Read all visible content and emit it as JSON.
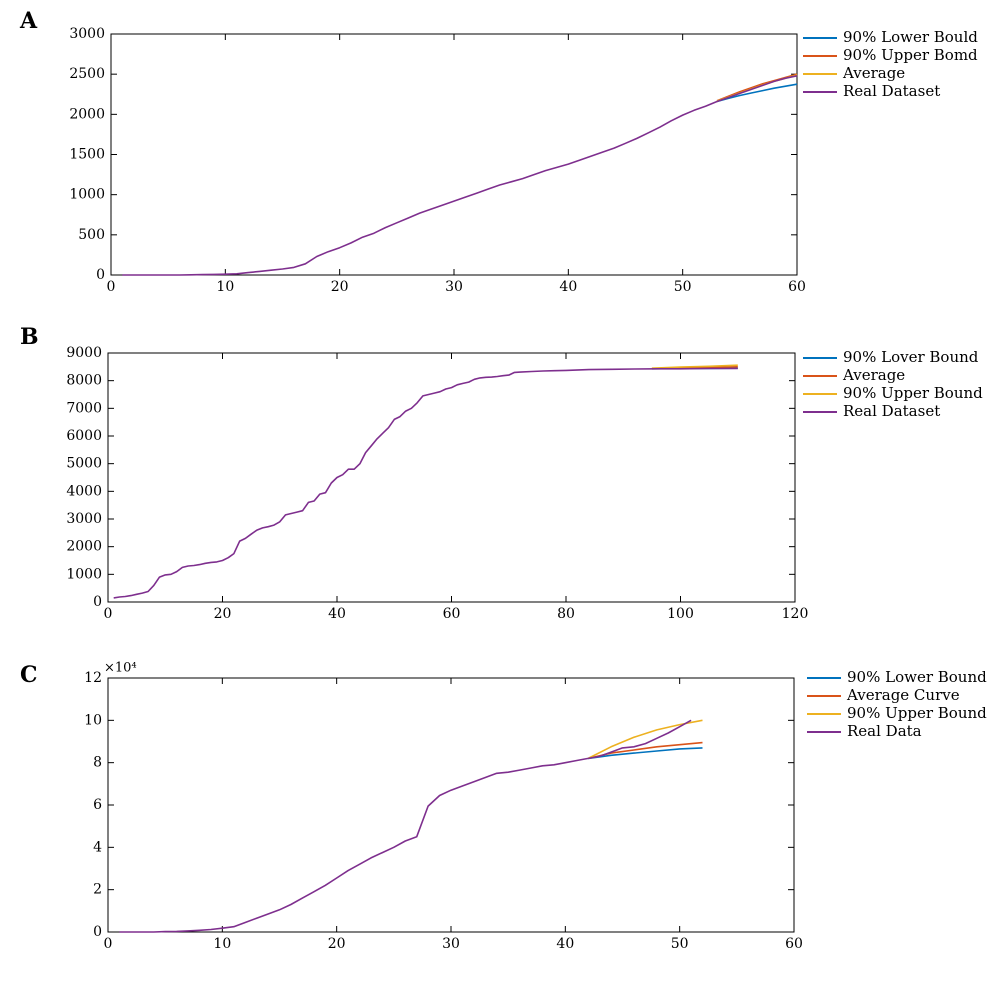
{
  "chart_data": [
    {
      "panel_label": "A",
      "type": "line",
      "xlim": [
        0,
        60
      ],
      "ylim": [
        0,
        3000
      ],
      "xticks": [
        0,
        10,
        20,
        30,
        40,
        50,
        60
      ],
      "yticks": [
        0,
        500,
        1000,
        1500,
        2000,
        2500,
        3000
      ],
      "xtick_labels": [
        "0",
        "10",
        "20",
        "30",
        "40",
        "50",
        "60"
      ],
      "ytick_labels": [
        "0",
        "500",
        "1000",
        "1500",
        "2000",
        "2500",
        "3000"
      ],
      "y_multiplier_label": "",
      "grid": false,
      "legend_position": "outside-right",
      "series": [
        {
          "name": "90% Lower Bould",
          "color": "#0072bd",
          "x": [
            53,
            54,
            55,
            56,
            57,
            58,
            59,
            60
          ],
          "y": [
            2160,
            2200,
            2235,
            2265,
            2295,
            2325,
            2350,
            2375
          ]
        },
        {
          "name": "90% Upper Bomd",
          "color": "#d95319",
          "x": [
            53,
            54,
            55,
            56,
            57,
            58,
            59,
            60
          ],
          "y": [
            2170,
            2225,
            2280,
            2330,
            2380,
            2420,
            2460,
            2500
          ]
        },
        {
          "name": "Average",
          "color": "#edb120",
          "x": [
            53,
            54,
            55,
            56,
            57,
            58,
            59,
            60
          ],
          "y": [
            2165,
            2215,
            2265,
            2315,
            2365,
            2410,
            2450,
            2490
          ]
        },
        {
          "name": "Real Dataset",
          "color": "#7e2f8e",
          "x": [
            1,
            2,
            3,
            4,
            5,
            6,
            7,
            8,
            9,
            10,
            11,
            12,
            13,
            14,
            15,
            16,
            17,
            18,
            19,
            20,
            21,
            22,
            23,
            24,
            25,
            26,
            27,
            28,
            29,
            30,
            31,
            32,
            33,
            34,
            35,
            36,
            37,
            38,
            39,
            40,
            41,
            42,
            43,
            44,
            45,
            46,
            47,
            48,
            49,
            50,
            51,
            52,
            53,
            54,
            55,
            56,
            57,
            58,
            59,
            60
          ],
          "y": [
            0,
            0,
            0,
            0,
            0,
            0,
            2,
            5,
            8,
            10,
            15,
            30,
            45,
            60,
            75,
            95,
            140,
            230,
            290,
            340,
            400,
            470,
            520,
            590,
            650,
            710,
            770,
            820,
            870,
            920,
            970,
            1020,
            1070,
            1120,
            1160,
            1200,
            1250,
            1300,
            1340,
            1380,
            1430,
            1480,
            1530,
            1580,
            1640,
            1700,
            1770,
            1840,
            1920,
            1990,
            2050,
            2100,
            2160,
            2210,
            2260,
            2310,
            2360,
            2410,
            2450,
            2480
          ]
        }
      ]
    },
    {
      "panel_label": "B",
      "type": "line",
      "xlim": [
        0,
        120
      ],
      "ylim": [
        0,
        9000
      ],
      "xticks": [
        0,
        20,
        40,
        60,
        80,
        100,
        120
      ],
      "yticks": [
        0,
        1000,
        2000,
        3000,
        4000,
        5000,
        6000,
        7000,
        8000,
        9000
      ],
      "xtick_labels": [
        "0",
        "20",
        "40",
        "60",
        "80",
        "100",
        "120"
      ],
      "ytick_labels": [
        "0",
        "1000",
        "2000",
        "3000",
        "4000",
        "5000",
        "6000",
        "7000",
        "8000",
        "9000"
      ],
      "y_multiplier_label": "",
      "grid": false,
      "legend_position": "outside-right",
      "series": [
        {
          "name": "90% Lover Bound",
          "color": "#0072bd",
          "x": [
            95,
            100,
            105,
            110
          ],
          "y": [
            8430,
            8440,
            8445,
            8450
          ]
        },
        {
          "name": "Average",
          "color": "#d95319",
          "x": [
            95,
            100,
            105,
            110
          ],
          "y": [
            8440,
            8460,
            8480,
            8500
          ]
        },
        {
          "name": "90% Upper Bound",
          "color": "#edb120",
          "x": [
            95,
            100,
            105,
            110
          ],
          "y": [
            8450,
            8490,
            8520,
            8560
          ]
        },
        {
          "name": "Real Dataset",
          "color": "#7e2f8e",
          "x": [
            1,
            2,
            3,
            4,
            5,
            6,
            7,
            8,
            9,
            10,
            11,
            12,
            13,
            14,
            15,
            16,
            17,
            18,
            19,
            20,
            21,
            22,
            23,
            24,
            25,
            26,
            27,
            28,
            29,
            30,
            31,
            32,
            33,
            34,
            35,
            36,
            37,
            38,
            39,
            40,
            41,
            42,
            43,
            44,
            45,
            46,
            47,
            48,
            49,
            50,
            51,
            52,
            53,
            54,
            55,
            56,
            57,
            58,
            59,
            60,
            61,
            62,
            63,
            64,
            65,
            66,
            67,
            68,
            69,
            70,
            71,
            72,
            74,
            76,
            78,
            80,
            84,
            88,
            92,
            96,
            100,
            105,
            110
          ],
          "y": [
            150,
            180,
            200,
            230,
            280,
            320,
            380,
            600,
            900,
            980,
            1000,
            1100,
            1250,
            1300,
            1320,
            1350,
            1400,
            1430,
            1450,
            1500,
            1600,
            1750,
            2200,
            2300,
            2450,
            2600,
            2680,
            2720,
            2780,
            2900,
            3150,
            3200,
            3250,
            3300,
            3600,
            3650,
            3900,
            3950,
            4300,
            4500,
            4600,
            4800,
            4800,
            5000,
            5400,
            5650,
            5900,
            6100,
            6300,
            6600,
            6700,
            6900,
            7000,
            7200,
            7450,
            7500,
            7550,
            7600,
            7700,
            7750,
            7850,
            7900,
            7950,
            8050,
            8100,
            8120,
            8130,
            8150,
            8180,
            8200,
            8300,
            8310,
            8330,
            8350,
            8360,
            8370,
            8400,
            8410,
            8420,
            8430,
            8430,
            8440,
            8440
          ]
        }
      ]
    },
    {
      "panel_label": "C",
      "type": "line",
      "xlim": [
        0,
        60
      ],
      "ylim": [
        0,
        12
      ],
      "xticks": [
        0,
        10,
        20,
        30,
        40,
        50,
        60
      ],
      "yticks": [
        0,
        2,
        4,
        6,
        8,
        10,
        12
      ],
      "xtick_labels": [
        "0",
        "10",
        "20",
        "30",
        "40",
        "50",
        "60"
      ],
      "ytick_labels": [
        "0",
        "2",
        "4",
        "6",
        "8",
        "10",
        "12"
      ],
      "y_multiplier_label": "×10⁴",
      "grid": false,
      "legend_position": "outside-right",
      "series": [
        {
          "name": "90% Lower Bound",
          "color": "#0072bd",
          "x": [
            42,
            44,
            46,
            48,
            50,
            52
          ],
          "y": [
            8.2,
            8.35,
            8.45,
            8.55,
            8.65,
            8.7
          ]
        },
        {
          "name": "Average Curve",
          "color": "#d95319",
          "x": [
            42,
            44,
            46,
            48,
            50,
            52
          ],
          "y": [
            8.2,
            8.45,
            8.6,
            8.75,
            8.85,
            8.95
          ]
        },
        {
          "name": "90% Upper Bound",
          "color": "#edb120",
          "x": [
            42,
            44,
            46,
            48,
            50,
            52
          ],
          "y": [
            8.2,
            8.75,
            9.2,
            9.55,
            9.8,
            10.0
          ]
        },
        {
          "name": "Real Data",
          "color": "#7e2f8e",
          "x": [
            1,
            2,
            3,
            4,
            5,
            6,
            7,
            8,
            9,
            10,
            11,
            12,
            13,
            14,
            15,
            16,
            17,
            18,
            19,
            20,
            21,
            22,
            23,
            24,
            25,
            26,
            27,
            28,
            29,
            30,
            31,
            32,
            33,
            34,
            35,
            36,
            37,
            38,
            39,
            40,
            41,
            42,
            43,
            44,
            45,
            46,
            47,
            48,
            49,
            50,
            51
          ],
          "y": [
            0,
            0,
            0,
            0,
            0.02,
            0.03,
            0.05,
            0.08,
            0.12,
            0.18,
            0.25,
            0.45,
            0.65,
            0.85,
            1.05,
            1.3,
            1.6,
            1.9,
            2.2,
            2.55,
            2.9,
            3.2,
            3.5,
            3.75,
            4.0,
            4.3,
            4.5,
            5.95,
            6.45,
            6.7,
            6.9,
            7.1,
            7.3,
            7.5,
            7.55,
            7.65,
            7.75,
            7.85,
            7.9,
            8.0,
            8.1,
            8.2,
            8.3,
            8.5,
            8.7,
            8.75,
            8.9,
            9.15,
            9.4,
            9.7,
            10.0
          ]
        }
      ]
    }
  ]
}
